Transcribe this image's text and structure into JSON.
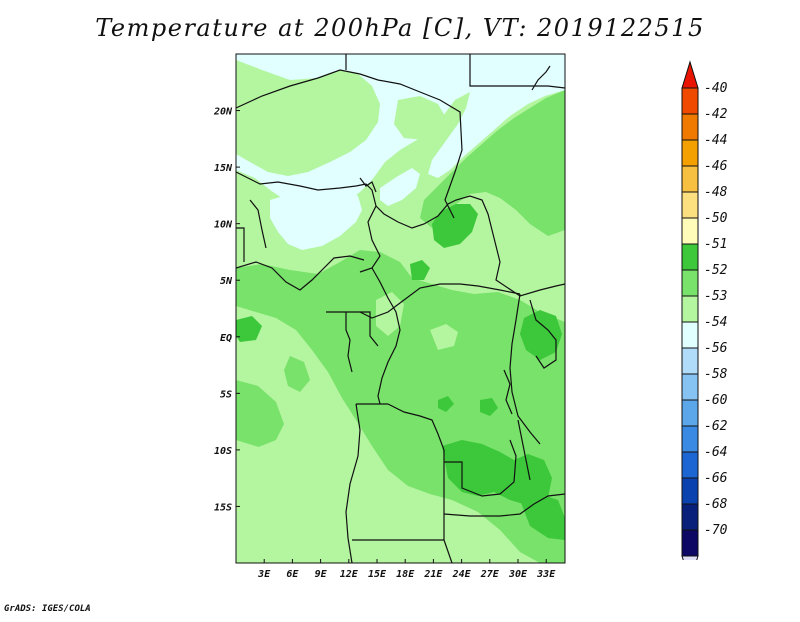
{
  "title": "Temperature at 200hPa [C], VT: 2019122515",
  "credit": "GrADS: IGES/COLA",
  "map": {
    "lon_range": [
      0,
      35
    ],
    "lat_range": [
      -20,
      25
    ],
    "lon_ticks": [
      {
        "value": 3,
        "label": "3E"
      },
      {
        "value": 6,
        "label": "6E"
      },
      {
        "value": 9,
        "label": "9E"
      },
      {
        "value": 12,
        "label": "12E"
      },
      {
        "value": 15,
        "label": "15E"
      },
      {
        "value": 18,
        "label": "18E"
      },
      {
        "value": 21,
        "label": "21E"
      },
      {
        "value": 24,
        "label": "24E"
      },
      {
        "value": 27,
        "label": "27E"
      },
      {
        "value": 30,
        "label": "30E"
      },
      {
        "value": 33,
        "label": "33E"
      }
    ],
    "lat_ticks": [
      {
        "value": 20,
        "label": "20N"
      },
      {
        "value": 15,
        "label": "15N"
      },
      {
        "value": 10,
        "label": "10N"
      },
      {
        "value": 5,
        "label": "5N"
      },
      {
        "value": 0,
        "label": "EQ"
      },
      {
        "value": -5,
        "label": "5S"
      },
      {
        "value": -10,
        "label": "10S"
      },
      {
        "value": -15,
        "label": "15S"
      }
    ],
    "fill_colors": {
      "c54": "#e0fffe",
      "c53": "#b4f5a0",
      "c52": "#78e26a",
      "c51": "#3cc83a",
      "border": "#111111"
    }
  },
  "colorbar": {
    "labels": [
      "-40",
      "-42",
      "-44",
      "-46",
      "-48",
      "-50",
      "-51",
      "-52",
      "-53",
      "-54",
      "-56",
      "-58",
      "-60",
      "-62",
      "-64",
      "-66",
      "-68",
      "-70"
    ],
    "colors": [
      "#e81400",
      "#f04a00",
      "#f07a00",
      "#f4a000",
      "#f8c040",
      "#fce080",
      "#fefcb8",
      "#3cc83a",
      "#78e26a",
      "#b4f5a0",
      "#e0fffe",
      "#b0dcfa",
      "#86c2f2",
      "#5ca6ea",
      "#3a8ae4",
      "#1c66d4",
      "#0a42b0",
      "#08207a",
      "#0c0864",
      "#e0e0f4"
    ]
  }
}
